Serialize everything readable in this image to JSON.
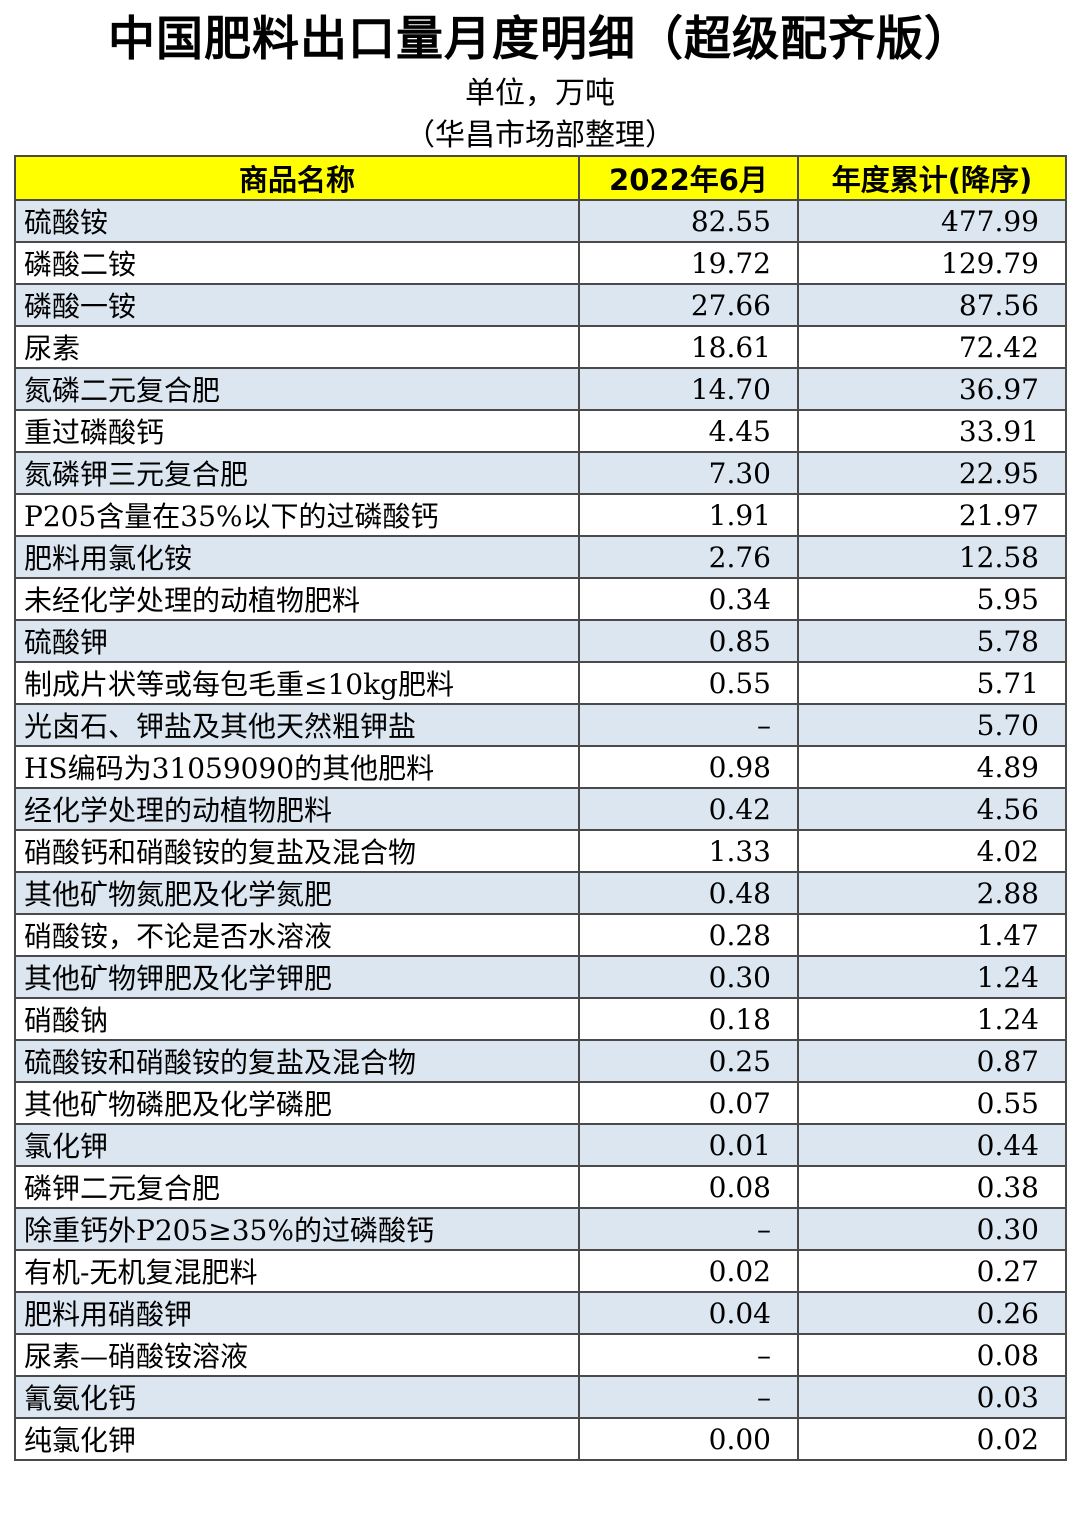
{
  "title": "中国肥料出口量月度明细（超级配齐版）",
  "unit": "单位，万吨",
  "source": "（华昌市场部整理）",
  "headers": [
    "商品名称",
    "2022年6月",
    "年度累计(降序)"
  ],
  "rows": [
    [
      "硫酸铵",
      "82.55",
      "477.99"
    ],
    [
      "磷酸二铵",
      "19.72",
      "129.79"
    ],
    [
      "磷酸一铵",
      "27.66",
      "87.56"
    ],
    [
      "尿素",
      "18.61",
      "72.42"
    ],
    [
      "氮磷二元复合肥",
      "14.70",
      "36.97"
    ],
    [
      "重过磷酸钙",
      "4.45",
      "33.91"
    ],
    [
      "氮磷钾三元复合肥",
      "7.30",
      "22.95"
    ],
    [
      "P205含量在35%以下的过磷酸钙",
      "1.91",
      "21.97"
    ],
    [
      "肥料用氯化铵",
      "2.76",
      "12.58"
    ],
    [
      "未经化学处理的动植物肥料",
      "0.34",
      "5.95"
    ],
    [
      "硫酸钾",
      "0.85",
      "5.78"
    ],
    [
      "制成片状等或每包毛重≤10kg肥料",
      "0.55",
      "5.71"
    ],
    [
      "光卤石、钾盐及其他天然粗钾盐",
      "–",
      "5.70"
    ],
    [
      "HS编码为31059090的其他肥料",
      "0.98",
      "4.89"
    ],
    [
      "经化学处理的动植物肥料",
      "0.42",
      "4.56"
    ],
    [
      "硝酸钙和硝酸铵的复盐及混合物",
      "1.33",
      "4.02"
    ],
    [
      "其他矿物氮肥及化学氮肥",
      "0.48",
      "2.88"
    ],
    [
      "硝酸铵，不论是否水溶液",
      "0.28",
      "1.47"
    ],
    [
      "其他矿物钾肥及化学钾肥",
      "0.30",
      "1.24"
    ],
    [
      "硝酸钠",
      "0.18",
      "1.24"
    ],
    [
      "硫酸铵和硝酸铵的复盐及混合物",
      "0.25",
      "0.87"
    ],
    [
      "其他矿物磷肥及化学磷肥",
      "0.07",
      "0.55"
    ],
    [
      "氯化钾",
      "0.01",
      "0.44"
    ],
    [
      "磷钾二元复合肥",
      "0.08",
      "0.38"
    ],
    [
      "除重钙外P205≥35%的过磷酸钙",
      "–",
      "0.30"
    ],
    [
      "有机-无机复混肥料",
      "0.02",
      "0.27"
    ],
    [
      "肥料用硝酸钾",
      "0.04",
      "0.26"
    ],
    [
      "尿素—硝酸铵溶液",
      "–",
      "0.08"
    ],
    [
      "氰氨化钙",
      "–",
      "0.03"
    ],
    [
      "纯氯化钾",
      "0.00",
      "0.02"
    ]
  ],
  "colors": {
    "header_bg": "#ffff00",
    "shaded_row_bg": "#dce6f1",
    "plain_row_bg": "#ffffff",
    "border": "#4a4a4a"
  }
}
